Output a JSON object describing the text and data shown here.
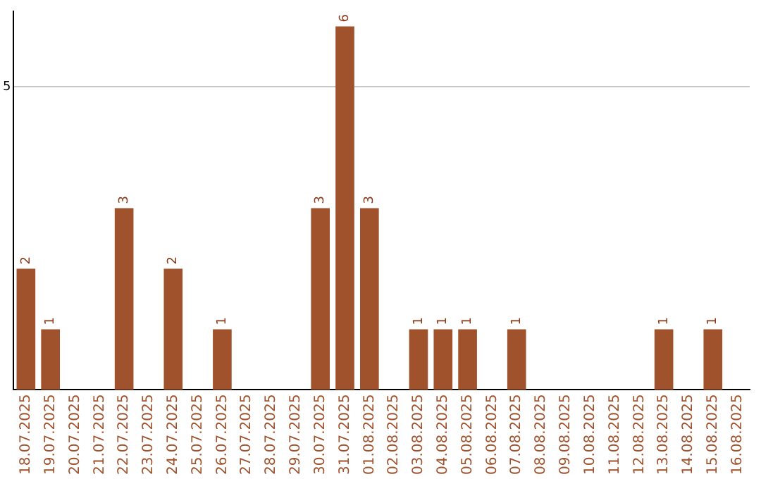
{
  "chart_data": {
    "type": "bar",
    "categories": [
      "18.07.2025",
      "19.07.2025",
      "20.07.2025",
      "21.07.2025",
      "22.07.2025",
      "23.07.2025",
      "24.07.2025",
      "25.07.2025",
      "26.07.2025",
      "27.07.2025",
      "28.07.2025",
      "29.07.2025",
      "30.07.2025",
      "31.07.2025",
      "01.08.2025",
      "02.08.2025",
      "03.08.2025",
      "04.08.2025",
      "05.08.2025",
      "06.08.2025",
      "07.08.2025",
      "08.08.2025",
      "09.08.2025",
      "10.08.2025",
      "11.08.2025",
      "12.08.2025",
      "13.08.2025",
      "14.08.2025",
      "15.08.2025",
      "16.08.2025"
    ],
    "values": [
      2,
      1,
      0,
      0,
      3,
      0,
      2,
      0,
      1,
      0,
      0,
      0,
      3,
      6,
      3,
      0,
      1,
      1,
      1,
      0,
      1,
      0,
      0,
      0,
      0,
      0,
      1,
      0,
      1,
      0
    ],
    "value_labels": [
      "2",
      "1",
      null,
      null,
      "3",
      null,
      "2",
      null,
      "1",
      null,
      null,
      null,
      "3",
      "6",
      "3",
      null,
      "1",
      "1",
      "1",
      null,
      "1",
      null,
      null,
      null,
      null,
      null,
      "1",
      null,
      "1",
      null
    ],
    "color": "#a0522d",
    "ylim": [
      0,
      6.25
    ],
    "yticks": [
      5
    ],
    "grid": "y"
  }
}
